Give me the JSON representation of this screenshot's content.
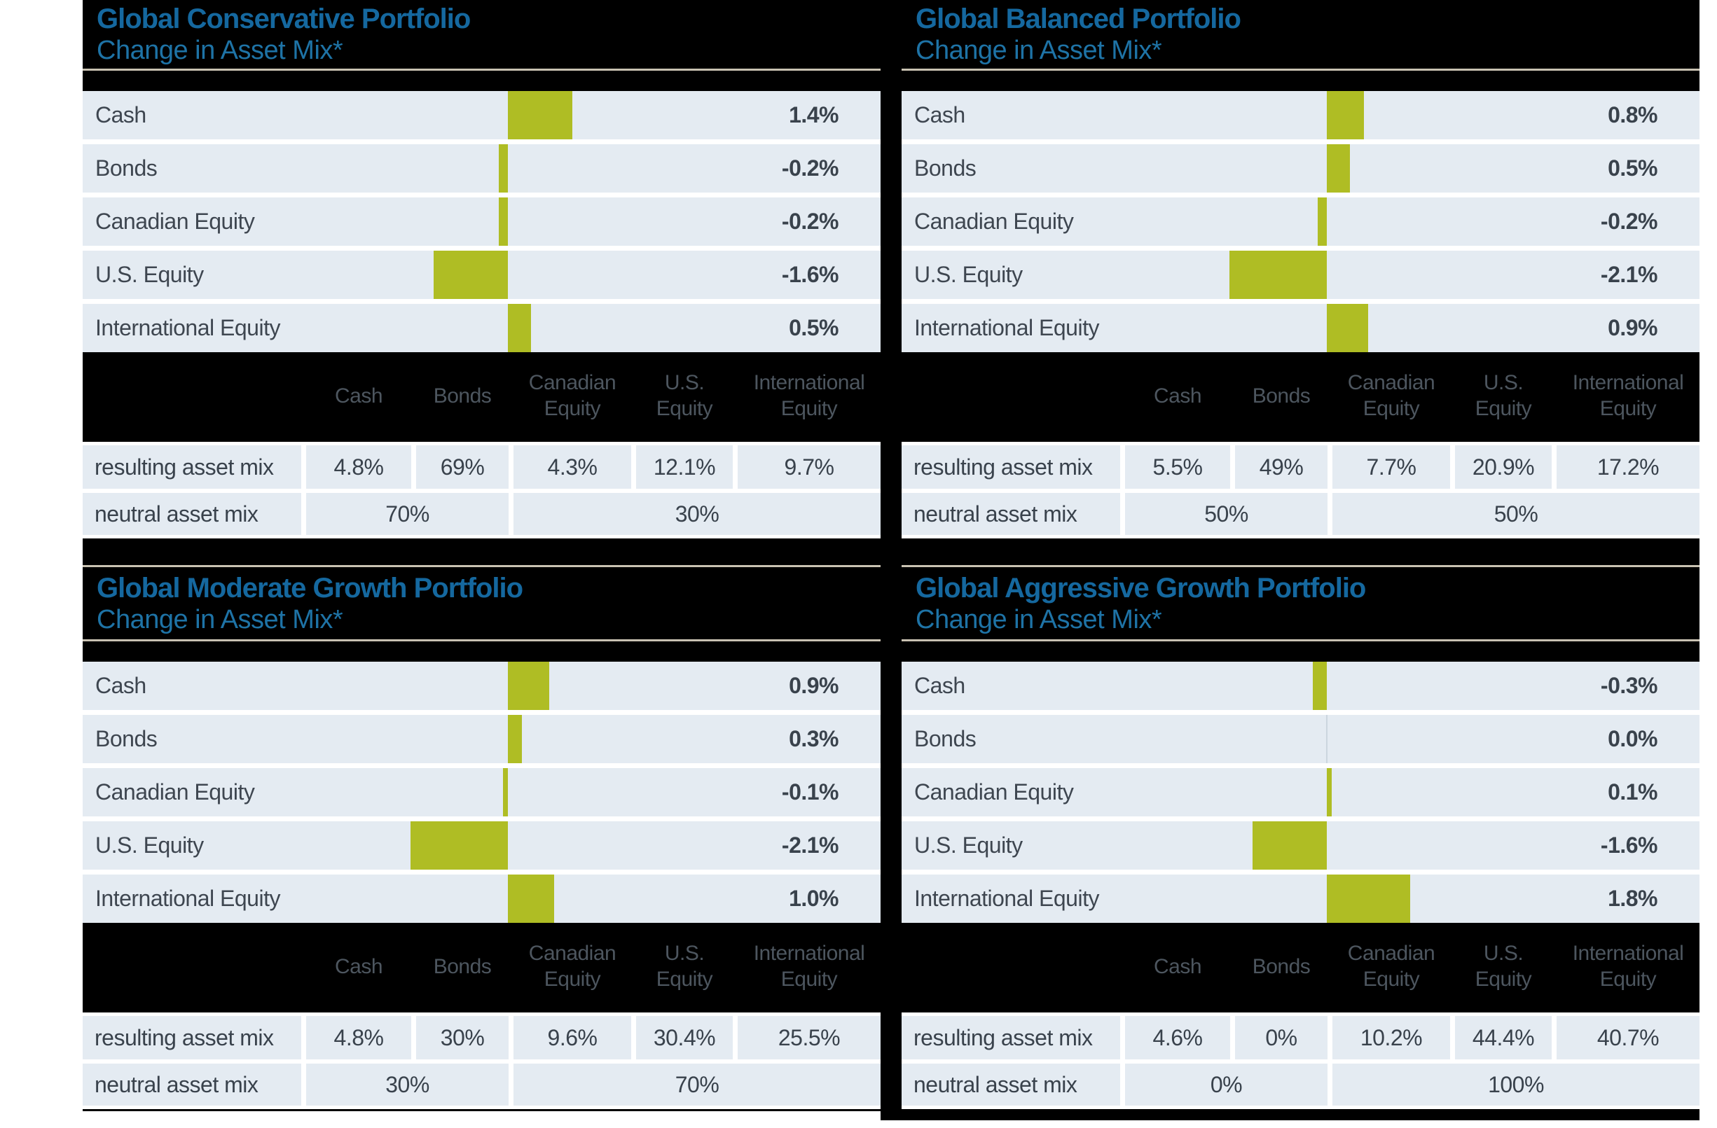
{
  "colors": {
    "bar_green": "#afbd24",
    "row_background": "#e4ebf2",
    "panel_background": "#000000",
    "title_blue": "#15689f",
    "subtitle_blue": "#1e73a6",
    "divider_beige": "#c9c2b2",
    "text_dark": "#39424c",
    "header_text_gray": "#4d565f",
    "zero_axis": "#ccd6df"
  },
  "chart_data": [
    {
      "type": "bar",
      "orientation": "horizontal",
      "axis": "center-zero",
      "title": "Global Conservative Portfolio",
      "subtitle": "Change in Asset Mix*",
      "categories": [
        "Cash",
        "Bonds",
        "Canadian Equity",
        "U.S. Equity",
        "International Equity"
      ],
      "values": [
        1.4,
        -0.2,
        -0.2,
        -1.6,
        0.5
      ],
      "value_labels": [
        "1.4%",
        "-0.2%",
        "-0.2%",
        "-1.6%",
        "0.5%"
      ],
      "table": {
        "columns": [
          "Cash",
          "Bonds",
          "Canadian Equity",
          "U.S. Equity",
          "International Equity"
        ],
        "rows": [
          {
            "label": "resulting asset mix",
            "values": [
              "4.8%",
              "69%",
              "4.3%",
              "12.1%",
              "9.7%"
            ]
          },
          {
            "label": "neutral asset mix",
            "values": [
              "70%",
              "30%"
            ],
            "spans": [
              2,
              3
            ]
          }
        ]
      }
    },
    {
      "type": "bar",
      "orientation": "horizontal",
      "axis": "center-zero",
      "title": "Global Balanced Portfolio",
      "subtitle": "Change in Asset Mix*",
      "categories": [
        "Cash",
        "Bonds",
        "Canadian Equity",
        "U.S. Equity",
        "International Equity"
      ],
      "values": [
        0.8,
        0.5,
        -0.2,
        -2.1,
        0.9
      ],
      "value_labels": [
        "0.8%",
        "0.5%",
        "-0.2%",
        "-2.1%",
        "0.9%"
      ],
      "table": {
        "columns": [
          "Cash",
          "Bonds",
          "Canadian Equity",
          "U.S. Equity",
          "International Equity"
        ],
        "rows": [
          {
            "label": "resulting asset mix",
            "values": [
              "5.5%",
              "49%",
              "7.7%",
              "20.9%",
              "17.2%"
            ]
          },
          {
            "label": "neutral asset mix",
            "values": [
              "50%",
              "50%"
            ],
            "spans": [
              2,
              3
            ]
          }
        ]
      }
    },
    {
      "type": "bar",
      "orientation": "horizontal",
      "axis": "center-zero",
      "title": "Global Moderate Growth Portfolio",
      "subtitle": "Change in Asset Mix*",
      "categories": [
        "Cash",
        "Bonds",
        "Canadian Equity",
        "U.S. Equity",
        "International Equity"
      ],
      "values": [
        0.9,
        0.3,
        -0.1,
        -2.1,
        1.0
      ],
      "value_labels": [
        "0.9%",
        "0.3%",
        "-0.1%",
        "-2.1%",
        "1.0%"
      ],
      "table": {
        "columns": [
          "Cash",
          "Bonds",
          "Canadian Equity",
          "U.S. Equity",
          "International Equity"
        ],
        "rows": [
          {
            "label": "resulting asset mix",
            "values": [
              "4.8%",
              "30%",
              "9.6%",
              "30.4%",
              "25.5%"
            ]
          },
          {
            "label": "neutral asset mix",
            "values": [
              "30%",
              "70%"
            ],
            "spans": [
              2,
              3
            ]
          }
        ]
      }
    },
    {
      "type": "bar",
      "orientation": "horizontal",
      "axis": "center-zero",
      "title": "Global Aggressive Growth Portfolio",
      "subtitle": "Change in Asset Mix*",
      "categories": [
        "Cash",
        "Bonds",
        "Canadian Equity",
        "U.S. Equity",
        "International Equity"
      ],
      "values": [
        -0.3,
        0.0,
        0.1,
        -1.6,
        1.8
      ],
      "value_labels": [
        "-0.3%",
        "0.0%",
        "0.1%",
        "-1.6%",
        "1.8%"
      ],
      "table": {
        "columns": [
          "Cash",
          "Bonds",
          "Canadian Equity",
          "U.S. Equity",
          "International Equity"
        ],
        "rows": [
          {
            "label": "resulting asset mix",
            "values": [
              "4.6%",
              "0%",
              "10.2%",
              "44.4%",
              "40.7%"
            ]
          },
          {
            "label": "neutral asset mix",
            "values": [
              "0%",
              "100%"
            ],
            "spans": [
              2,
              3
            ]
          }
        ]
      }
    }
  ]
}
